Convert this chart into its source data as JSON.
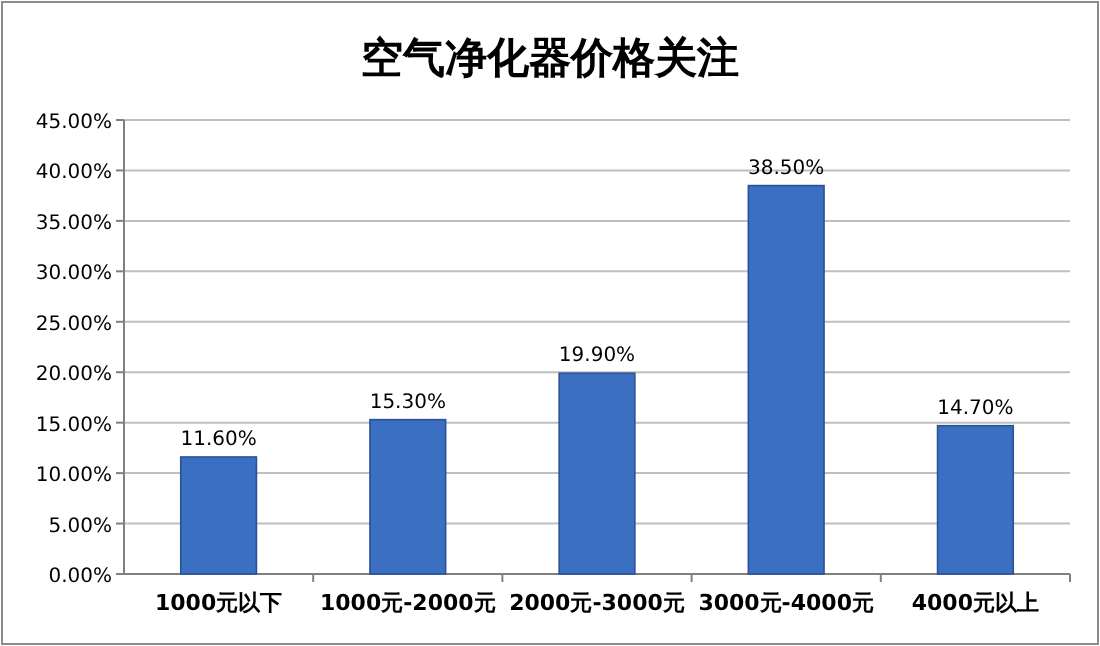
{
  "chart_data": {
    "type": "bar",
    "title": "空气净化器价格关注",
    "categories": [
      "1000元以下",
      "1000元-2000元",
      "2000元-3000元",
      "3000元-4000元",
      "4000元以上"
    ],
    "values": [
      11.6,
      15.3,
      19.9,
      38.5,
      14.7
    ],
    "value_labels": [
      "11.60%",
      "15.30%",
      "19.90%",
      "38.50%",
      "14.70%"
    ],
    "color": "#3b6fc2",
    "ylim": [
      0,
      45
    ],
    "yticks": [
      {
        "value": 0,
        "label": "0.00%"
      },
      {
        "value": 5,
        "label": "5.00%"
      },
      {
        "value": 10,
        "label": "10.00%"
      },
      {
        "value": 15,
        "label": "15.00%"
      },
      {
        "value": 20,
        "label": "20.00%"
      },
      {
        "value": 25,
        "label": "25.00%"
      },
      {
        "value": 30,
        "label": "30.00%"
      },
      {
        "value": 35,
        "label": "35.00%"
      },
      {
        "value": 40,
        "label": "40.00%"
      },
      {
        "value": 45,
        "label": "45.00%"
      }
    ],
    "grid": "y"
  }
}
